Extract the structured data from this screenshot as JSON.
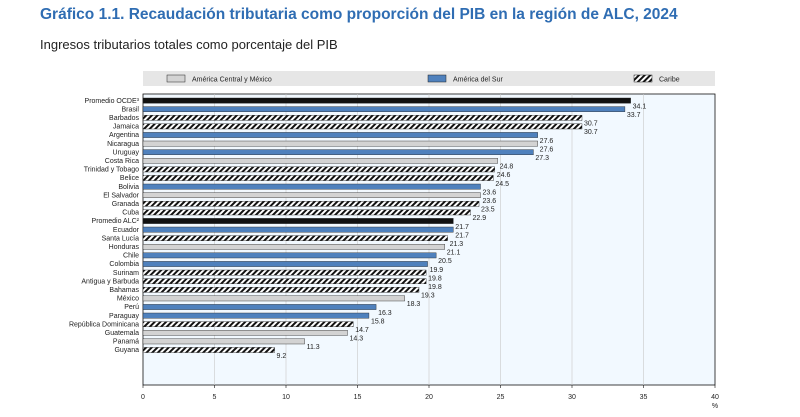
{
  "title": "Gráfico 1.1. Recaudación tributaria como proporción del PIB en la región de ALC, 2024",
  "subtitle": "Ingresos tributarios totales como porcentaje del PIB",
  "colors": {
    "central": "#d3d3d3",
    "sur": "#4f81bd",
    "average": "#111111",
    "plot_bg": "#f2f9ff",
    "hatch": "#111111"
  },
  "chart_data": {
    "type": "bar",
    "orientation": "horizontal",
    "title": "Gráfico 1.1. Recaudación tributaria como proporción del PIB en la región de ALC, 2024",
    "subtitle": "Ingresos tributarios totales como porcentaje del PIB",
    "xlabel": "%",
    "xlim": [
      0,
      40
    ],
    "xticks": [
      0,
      5,
      10,
      15,
      20,
      25,
      30,
      35,
      40
    ],
    "grid": "vertical",
    "legend_position": "top",
    "legend": [
      {
        "key": "central",
        "label": "América Central y México",
        "style": "solid-light-gray"
      },
      {
        "key": "sur",
        "label": "América del Sur",
        "style": "solid-blue"
      },
      {
        "key": "caribe",
        "label": "Caribe",
        "style": "hatched"
      }
    ],
    "categories": [
      "Promedio OCDE³",
      "Brasil",
      "Barbados",
      "Jamaica",
      "Argentina",
      "Nicaragua",
      "Uruguay",
      "Costa Rica",
      "Trinidad y Tobago",
      "Belice",
      "Bolivia",
      "El Salvador",
      "Granada",
      "Cuba",
      "Promedio ALC²",
      "Ecuador",
      "Santa Lucía",
      "Honduras",
      "Chile",
      "Colombia",
      "Surinam",
      "Antigua y Barbuda",
      "Bahamas",
      "México",
      "Perú",
      "Paraguay",
      "República Dominicana",
      "Guatemala",
      "Panamá",
      "Guyana"
    ],
    "values": [
      34.1,
      33.7,
      30.7,
      30.7,
      27.6,
      27.6,
      27.3,
      24.8,
      24.6,
      24.5,
      23.6,
      23.6,
      23.5,
      22.9,
      21.7,
      21.7,
      21.3,
      21.1,
      20.5,
      19.9,
      19.8,
      19.8,
      19.3,
      18.3,
      16.3,
      15.8,
      14.7,
      14.3,
      11.3,
      9.2
    ],
    "value_labels": [
      "34.1",
      "33.7",
      "30.7",
      "30.7",
      "27.6",
      "27.6",
      "27.3",
      "24.8",
      "24.6",
      "24.5",
      "23.6",
      "23.6",
      "23.5",
      "22.9",
      "21.7",
      "21.7",
      "21.3",
      "21.1",
      "20.5",
      "19.9",
      "19.8",
      "19.8",
      "19.3",
      "18.3",
      "16.3",
      "15.8",
      "14.7",
      "14.3",
      "11.3",
      "9.2"
    ],
    "groups": [
      "average",
      "sur",
      "caribe",
      "caribe",
      "sur",
      "central",
      "sur",
      "central",
      "caribe",
      "caribe",
      "sur",
      "central",
      "caribe",
      "caribe",
      "average",
      "sur",
      "caribe",
      "central",
      "sur",
      "sur",
      "caribe",
      "caribe",
      "caribe",
      "central",
      "sur",
      "sur",
      "caribe",
      "central",
      "central",
      "caribe"
    ]
  }
}
